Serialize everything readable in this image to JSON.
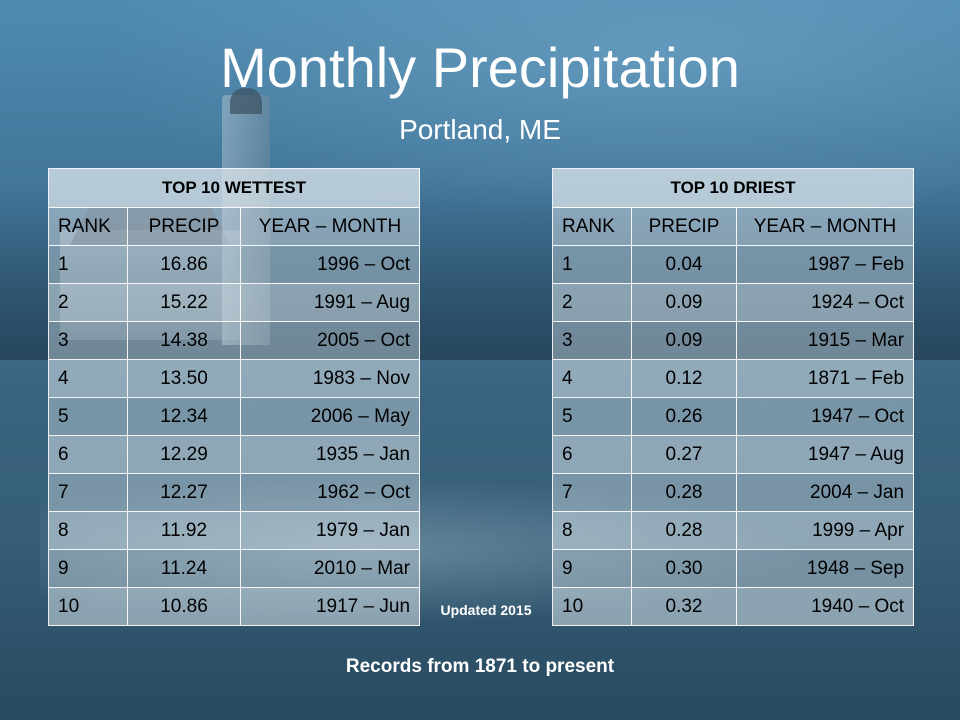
{
  "title": "Monthly Precipitation",
  "subtitle": "Portland, ME",
  "wettest": {
    "heading": "TOP 10  WETTEST",
    "columns": [
      "RANK",
      "PRECIP",
      "YEAR – MONTH"
    ],
    "rows": [
      [
        "1",
        "16.86",
        "1996 – Oct"
      ],
      [
        "2",
        "15.22",
        "1991 – Aug"
      ],
      [
        "3",
        "14.38",
        "2005 – Oct"
      ],
      [
        "4",
        "13.50",
        "1983 – Nov"
      ],
      [
        "5",
        "12.34",
        "2006 – May"
      ],
      [
        "6",
        "12.29",
        "1935 – Jan"
      ],
      [
        "7",
        "12.27",
        "1962 – Oct"
      ],
      [
        "8",
        "11.92",
        "1979 – Jan"
      ],
      [
        "9",
        "11.24",
        "2010 – Mar"
      ],
      [
        "10",
        "10.86",
        "1917 – Jun"
      ]
    ]
  },
  "driest": {
    "heading": "TOP 10 DRIEST",
    "columns": [
      "RANK",
      "PRECIP",
      "YEAR – MONTH"
    ],
    "rows": [
      [
        "1",
        "0.04",
        "1987 – Feb"
      ],
      [
        "2",
        "0.09",
        "1924 – Oct"
      ],
      [
        "3",
        "0.09",
        "1915 – Mar"
      ],
      [
        "4",
        "0.12",
        "1871 – Feb"
      ],
      [
        "5",
        "0.26",
        "1947 – Oct"
      ],
      [
        "6",
        "0.27",
        "1947 – Aug"
      ],
      [
        "7",
        "0.28",
        "2004 – Jan"
      ],
      [
        "8",
        "0.28",
        "1999 – Apr"
      ],
      [
        "9",
        "0.30",
        "1948 – Sep"
      ],
      [
        "10",
        "0.32",
        "1940 – Oct"
      ]
    ]
  },
  "updated_note": "Updated 2015",
  "footer": "Records from 1871 to present"
}
